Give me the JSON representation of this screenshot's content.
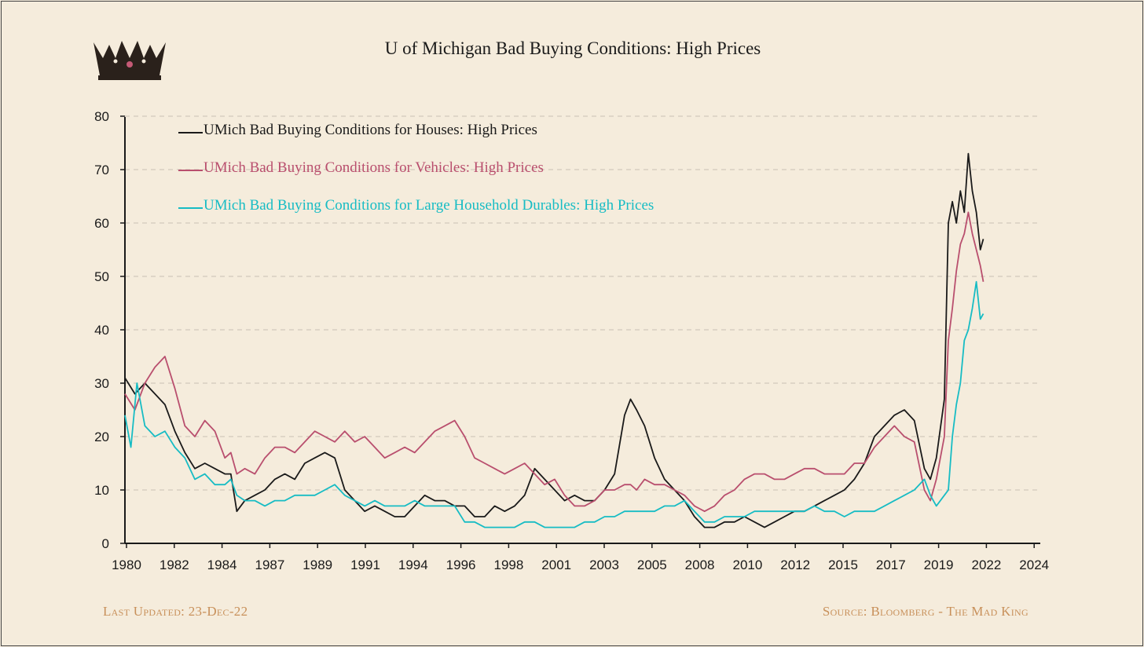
{
  "colors": {
    "background": "#f5ecdc",
    "houses": "#1a1a1a",
    "vehicles": "#b94f6e",
    "durables": "#17bcc4",
    "footer": "#c8905a",
    "grid": "#c9c1b3"
  },
  "logo": {
    "icon": "crown-icon"
  },
  "footer": {
    "last_updated": "Last Updated: 23-Dec-22",
    "source": "Source: Bloomberg - The Mad King"
  },
  "chart_data": {
    "type": "line",
    "title": "U of Michigan Bad Buying Conditions: High Prices",
    "xlabel": "",
    "ylabel": "",
    "xlim": [
      1980,
      2025.8
    ],
    "ylim": [
      0,
      80
    ],
    "x_tick_labels": [
      "1980",
      "1982",
      "1984",
      "1987",
      "1989",
      "1991",
      "1994",
      "1996",
      "1998",
      "2001",
      "2003",
      "2005",
      "2008",
      "2010",
      "2012",
      "2015",
      "2017",
      "2019",
      "2022",
      "2024"
    ],
    "y_ticks": [
      0,
      10,
      20,
      30,
      40,
      50,
      60,
      70,
      80
    ],
    "grid": "horizontal dashed",
    "legend_position": "top-left",
    "series": [
      {
        "name": "UMich Bad Buying Conditions for Houses: High Prices",
        "color": "#1a1a1a",
        "x": [
          1980,
          1980.5,
          1981,
          1981.5,
          1982,
          1982.5,
          1983,
          1983.5,
          1984,
          1984.5,
          1985,
          1985.3,
          1985.6,
          1986,
          1986.5,
          1987,
          1987.5,
          1988,
          1988.5,
          1989,
          1989.5,
          1990,
          1990.5,
          1991,
          1991.5,
          1992,
          1992.5,
          1993,
          1993.5,
          1994,
          1994.5,
          1995,
          1995.5,
          1996,
          1996.5,
          1997,
          1997.5,
          1998,
          1998.5,
          1999,
          1999.5,
          2000,
          2000.5,
          2001,
          2001.5,
          2002,
          2002.5,
          2003,
          2003.5,
          2004,
          2004.5,
          2005,
          2005.3,
          2005.6,
          2006,
          2006.5,
          2007,
          2007.5,
          2008,
          2008.5,
          2009,
          2009.5,
          2010,
          2010.5,
          2011,
          2011.5,
          2012,
          2012.5,
          2013,
          2013.5,
          2014,
          2014.5,
          2015,
          2015.5,
          2016,
          2016.5,
          2017,
          2017.5,
          2018,
          2018.5,
          2019,
          2019.5,
          2020,
          2020.3,
          2020.6,
          2021,
          2021.2,
          2021.4,
          2021.6,
          2021.8,
          2022,
          2022.2,
          2022.4,
          2022.6,
          2022.8,
          2022.95
        ],
        "y": [
          31,
          28,
          30,
          28,
          26,
          21,
          17,
          14,
          15,
          14,
          13,
          13,
          6,
          8,
          9,
          10,
          12,
          13,
          12,
          15,
          16,
          17,
          16,
          10,
          8,
          6,
          7,
          6,
          5,
          5,
          7,
          9,
          8,
          8,
          7,
          7,
          5,
          5,
          7,
          6,
          7,
          9,
          14,
          12,
          10,
          8,
          9,
          8,
          8,
          10,
          13,
          24,
          27,
          25,
          22,
          16,
          12,
          10,
          8,
          5,
          3,
          3,
          4,
          4,
          5,
          4,
          3,
          4,
          5,
          6,
          6,
          7,
          8,
          9,
          10,
          12,
          15,
          20,
          22,
          24,
          25,
          23,
          14,
          12,
          16,
          27,
          60,
          64,
          60,
          66,
          62,
          73,
          66,
          62,
          55,
          57
        ]
      },
      {
        "name": "UMich Bad Buying Conditions for Vehicles: High Prices",
        "color": "#b94f6e",
        "x": [
          1980,
          1980.5,
          1981,
          1981.5,
          1982,
          1982.5,
          1983,
          1983.5,
          1984,
          1984.5,
          1985,
          1985.3,
          1985.6,
          1986,
          1986.5,
          1987,
          1987.5,
          1988,
          1988.5,
          1989,
          1989.5,
          1990,
          1990.5,
          1991,
          1991.5,
          1992,
          1992.5,
          1993,
          1993.5,
          1994,
          1994.5,
          1995,
          1995.5,
          1996,
          1996.5,
          1997,
          1997.5,
          1998,
          1998.5,
          1999,
          1999.5,
          2000,
          2000.5,
          2001,
          2001.5,
          2002,
          2002.5,
          2003,
          2003.5,
          2004,
          2004.5,
          2005,
          2005.3,
          2005.6,
          2006,
          2006.5,
          2007,
          2007.5,
          2008,
          2008.5,
          2009,
          2009.5,
          2010,
          2010.5,
          2011,
          2011.5,
          2012,
          2012.5,
          2013,
          2013.5,
          2014,
          2014.5,
          2015,
          2015.5,
          2016,
          2016.5,
          2017,
          2017.5,
          2018,
          2018.5,
          2019,
          2019.5,
          2020,
          2020.3,
          2020.6,
          2021,
          2021.2,
          2021.4,
          2021.6,
          2021.8,
          2022,
          2022.2,
          2022.4,
          2022.6,
          2022.8,
          2022.95
        ],
        "y": [
          28,
          25,
          30,
          33,
          35,
          29,
          22,
          20,
          23,
          21,
          16,
          17,
          13,
          14,
          13,
          16,
          18,
          18,
          17,
          19,
          21,
          20,
          19,
          21,
          19,
          20,
          18,
          16,
          17,
          18,
          17,
          19,
          21,
          22,
          23,
          20,
          16,
          15,
          14,
          13,
          14,
          15,
          13,
          11,
          12,
          9,
          7,
          7,
          8,
          10,
          10,
          11,
          11,
          10,
          12,
          11,
          11,
          10,
          9,
          7,
          6,
          7,
          9,
          10,
          12,
          13,
          13,
          12,
          12,
          13,
          14,
          14,
          13,
          13,
          13,
          15,
          15,
          18,
          20,
          22,
          20,
          19,
          10,
          8,
          12,
          20,
          38,
          44,
          51,
          56,
          58,
          62,
          58,
          55,
          52,
          49
        ]
      },
      {
        "name": "UMich Bad Buying Conditions for Large Household Durables: High Prices",
        "color": "#17bcc4",
        "x": [
          1980,
          1980.3,
          1980.6,
          1981,
          1981.5,
          1982,
          1982.5,
          1983,
          1983.5,
          1984,
          1984.5,
          1985,
          1985.3,
          1985.6,
          1986,
          1986.5,
          1987,
          1987.5,
          1988,
          1988.5,
          1989,
          1989.5,
          1990,
          1990.5,
          1991,
          1991.5,
          1992,
          1992.5,
          1993,
          1993.5,
          1994,
          1994.5,
          1995,
          1995.5,
          1996,
          1996.5,
          1997,
          1997.5,
          1998,
          1998.5,
          1999,
          1999.5,
          2000,
          2000.5,
          2001,
          2001.5,
          2002,
          2002.5,
          2003,
          2003.5,
          2004,
          2004.5,
          2005,
          2005.3,
          2005.6,
          2006,
          2006.5,
          2007,
          2007.5,
          2008,
          2008.5,
          2009,
          2009.5,
          2010,
          2010.5,
          2011,
          2011.5,
          2012,
          2012.5,
          2013,
          2013.5,
          2014,
          2014.5,
          2015,
          2015.5,
          2016,
          2016.5,
          2017,
          2017.5,
          2018,
          2018.5,
          2019,
          2019.5,
          2020,
          2020.3,
          2020.6,
          2021,
          2021.2,
          2021.4,
          2021.6,
          2021.8,
          2022,
          2022.2,
          2022.4,
          2022.6,
          2022.8,
          2022.95
        ],
        "y": [
          24,
          18,
          30,
          22,
          20,
          21,
          18,
          16,
          12,
          13,
          11,
          11,
          12,
          9,
          8,
          8,
          7,
          8,
          8,
          9,
          9,
          9,
          10,
          11,
          9,
          8,
          7,
          8,
          7,
          7,
          7,
          8,
          7,
          7,
          7,
          7,
          4,
          4,
          3,
          3,
          3,
          3,
          4,
          4,
          3,
          3,
          3,
          3,
          4,
          4,
          5,
          5,
          6,
          6,
          6,
          6,
          6,
          7,
          7,
          8,
          6,
          4,
          4,
          5,
          5,
          5,
          6,
          6,
          6,
          6,
          6,
          6,
          7,
          6,
          6,
          5,
          6,
          6,
          6,
          7,
          8,
          9,
          10,
          12,
          9,
          7,
          9,
          10,
          20,
          26,
          30,
          38,
          40,
          44,
          49,
          42,
          43
        ]
      }
    ]
  }
}
